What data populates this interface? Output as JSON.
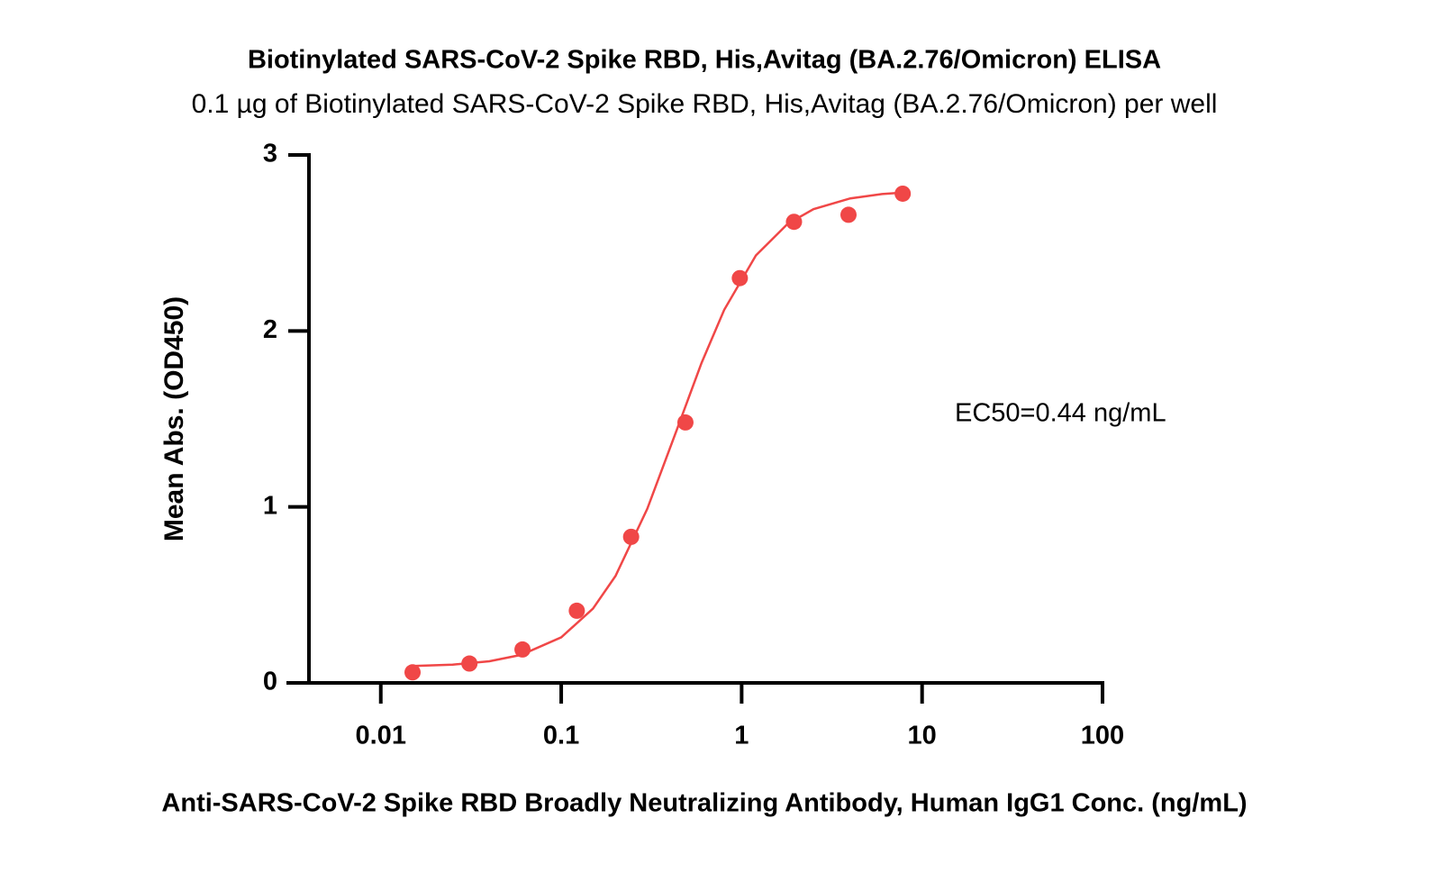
{
  "chart_data": {
    "type": "scatter",
    "title": "Biotinylated SARS-CoV-2 Spike RBD, His,Avitag (BA.2.76/Omicron) ELISA",
    "subtitle": "0.1 µg of Biotinylated SARS-CoV-2 Spike RBD, His,Avitag (BA.2.76/Omicron) per well",
    "x_label": "Anti-SARS-CoV-2 Spike RBD Broadly Neutralizing Antibody, Human IgG1 Conc. (ng/mL)",
    "y_label": "Mean Abs. (OD450)",
    "annotation": "EC50=0.44 ng/mL",
    "x_log": true,
    "xlim": [
      0.003,
      100
    ],
    "xticks": [
      0.01,
      0.1,
      1,
      10,
      100
    ],
    "ylim": [
      0,
      3
    ],
    "yticks": [
      0,
      1,
      2,
      3
    ],
    "color": "#f04747",
    "x": [
      0.015,
      0.031,
      0.061,
      0.122,
      0.244,
      0.488,
      0.977,
      1.95,
      3.91,
      7.81
    ],
    "values": [
      0.06,
      0.11,
      0.19,
      0.41,
      0.83,
      1.48,
      2.3,
      2.62,
      2.66,
      2.78
    ],
    "fit": {
      "x": [
        0.015,
        0.025,
        0.04,
        0.06,
        0.1,
        0.15,
        0.2,
        0.3,
        0.44,
        0.6,
        0.8,
        1.2,
        1.8,
        2.5,
        4,
        6,
        8
      ],
      "values": [
        0.096,
        0.104,
        0.123,
        0.159,
        0.259,
        0.422,
        0.608,
        0.989,
        1.445,
        1.819,
        2.12,
        2.429,
        2.609,
        2.692,
        2.753,
        2.778,
        2.787
      ]
    }
  }
}
